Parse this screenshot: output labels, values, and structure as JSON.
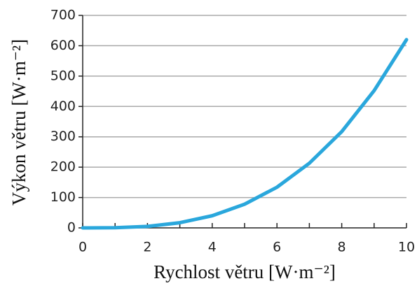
{
  "chart_data": {
    "type": "line",
    "xlabel": "Rychlost větru [W·m⁻²]",
    "ylabel": "Výkon větru [W·m⁻²]",
    "x": [
      0,
      1,
      2,
      3,
      4,
      5,
      6,
      7,
      8,
      9,
      10
    ],
    "values": [
      0,
      0.6,
      5,
      17,
      40,
      78,
      134,
      213,
      317,
      452,
      620
    ],
    "color": "#2aa7dc",
    "xlim": [
      0,
      10
    ],
    "xticks": [
      0,
      2,
      4,
      6,
      8,
      10
    ],
    "xminor_ticks": [
      1,
      3,
      5,
      7,
      9
    ],
    "ylim": [
      0,
      700
    ],
    "yticks": [
      0,
      100,
      200,
      300,
      400,
      500,
      600,
      700
    ],
    "grid": true
  }
}
